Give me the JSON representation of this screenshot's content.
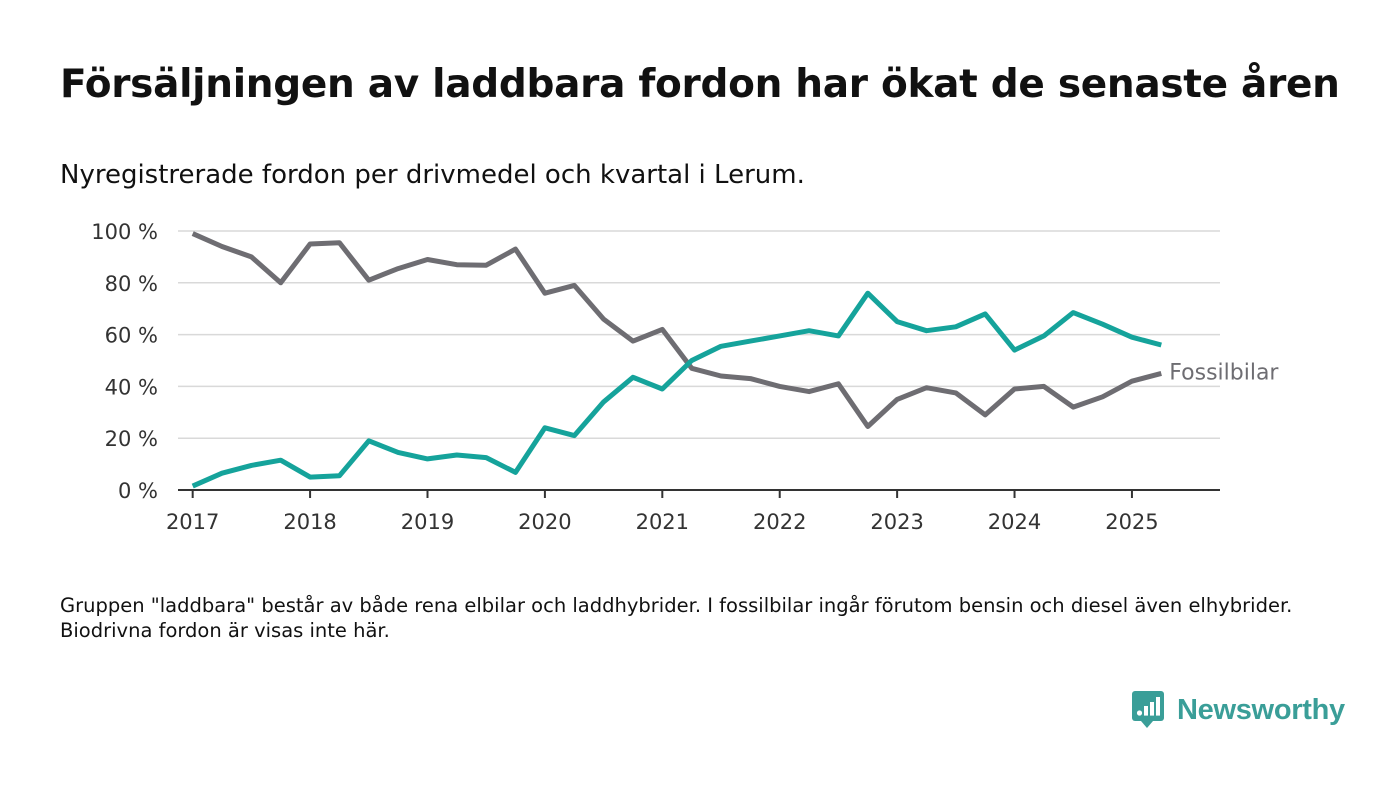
{
  "title": "Försäljningen av laddbara fordon har ökat de senaste åren",
  "subtitle": "Nyregistrerade fordon per drivmedel och kvartal i Lerum.",
  "note": "Gruppen \"laddbara\" består av både rena elbilar och laddhybrider. I fossilbilar ingår förutom bensin och diesel även elhybrider. Biodrivna fordon är visas inte här.",
  "brand": {
    "name": "Newsworthy",
    "color": "#3a9e98"
  },
  "chart_data": {
    "type": "line",
    "ylim": [
      0,
      100
    ],
    "y_ticks": [
      0,
      20,
      40,
      60,
      80,
      100
    ],
    "y_tick_labels": [
      "0 %",
      "20 %",
      "40 %",
      "60 %",
      "80 %",
      "100 %"
    ],
    "xlim": [
      2016.875,
      2025.75
    ],
    "x_ticks": [
      2017,
      2018,
      2019,
      2020,
      2021,
      2022,
      2023,
      2024,
      2025
    ],
    "x_tick_labels": [
      "2017",
      "2018",
      "2019",
      "2020",
      "2021",
      "2022",
      "2023",
      "2024",
      "2025"
    ],
    "grid": true,
    "x": [
      "2017 Q1",
      "2017 Q2",
      "2017 Q3",
      "2017 Q4",
      "2018 Q1",
      "2018 Q2",
      "2018 Q3",
      "2018 Q4",
      "2019 Q1",
      "2019 Q2",
      "2019 Q3",
      "2019 Q4",
      "2020 Q1",
      "2020 Q2",
      "2020 Q3",
      "2020 Q4",
      "2021 Q1",
      "2021 Q2",
      "2021 Q3",
      "2021 Q4",
      "2022 Q1",
      "2022 Q2",
      "2022 Q3",
      "2022 Q4",
      "2023 Q1",
      "2023 Q2",
      "2023 Q3",
      "2023 Q4",
      "2024 Q1",
      "2024 Q2",
      "2024 Q3",
      "2024 Q4",
      "2025 Q1",
      "2025 Q2"
    ],
    "series": [
      {
        "name": "Fossilbilar",
        "color": "#6e6d72",
        "label_shown": true,
        "values": [
          99,
          94,
          90,
          80,
          95,
          95.5,
          81,
          85.5,
          89,
          87,
          86.8,
          93,
          76,
          79,
          66,
          57.5,
          62,
          47,
          44,
          43,
          40,
          38,
          41,
          24.5,
          35,
          39.5,
          37.5,
          29,
          39,
          40,
          32,
          36,
          42,
          45
        ]
      },
      {
        "name": "",
        "color": "#15a39b",
        "label_shown": false,
        "values": [
          1.5,
          6.5,
          9.5,
          11.5,
          5,
          5.5,
          19,
          14.5,
          12,
          13.5,
          12.5,
          6.8,
          24,
          21,
          34,
          43.5,
          39,
          50,
          55.5,
          57.5,
          59.5,
          61.5,
          59.5,
          76,
          65,
          61.5,
          63,
          68,
          54,
          59.5,
          68.5,
          64,
          59,
          56
        ]
      }
    ]
  }
}
